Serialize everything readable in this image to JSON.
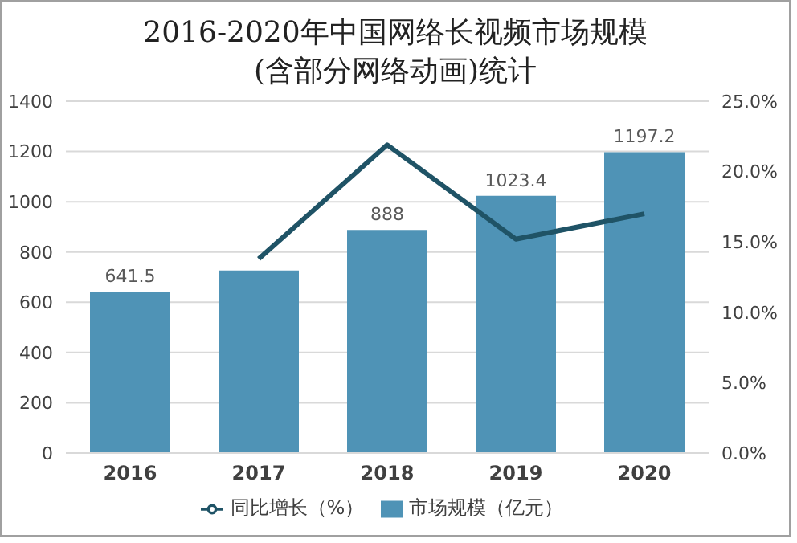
{
  "chart_data": {
    "type": "bar",
    "title": "2016-2020年中国网络长视频市场规模\n(含部分网络动画)统计",
    "categories": [
      "2016",
      "2017",
      "2018",
      "2019",
      "2020"
    ],
    "series": [
      {
        "name": "市场规模（亿元）",
        "color": "#4f93b6",
        "values": [
          641.5,
          726,
          888,
          1023.4,
          1197.2
        ],
        "value_labels": [
          "641.5",
          null,
          "888",
          "1023.4",
          "1197.2"
        ]
      },
      {
        "name": "同比增长（%）",
        "type": "line",
        "axis": "y2",
        "color": "#1f5366",
        "values": [
          null,
          13.8,
          21.9,
          15.2,
          17.0
        ]
      }
    ],
    "ylim": [
      0,
      1400
    ],
    "yticks": [
      0,
      200,
      400,
      600,
      800,
      1000,
      1200,
      1400
    ],
    "y2lim": [
      0,
      25
    ],
    "y2ticks": [
      {
        "value": 0,
        "label": "0.0%"
      },
      {
        "value": 5,
        "label": "5.0%"
      },
      {
        "value": 10,
        "label": "10.0%"
      },
      {
        "value": 15,
        "label": "15.0%"
      },
      {
        "value": 20,
        "label": "20.0%"
      },
      {
        "value": 25,
        "label": "25.0%"
      }
    ],
    "grid": "y",
    "legend": "bottom",
    "marker": "none",
    "line_style": "solid"
  }
}
